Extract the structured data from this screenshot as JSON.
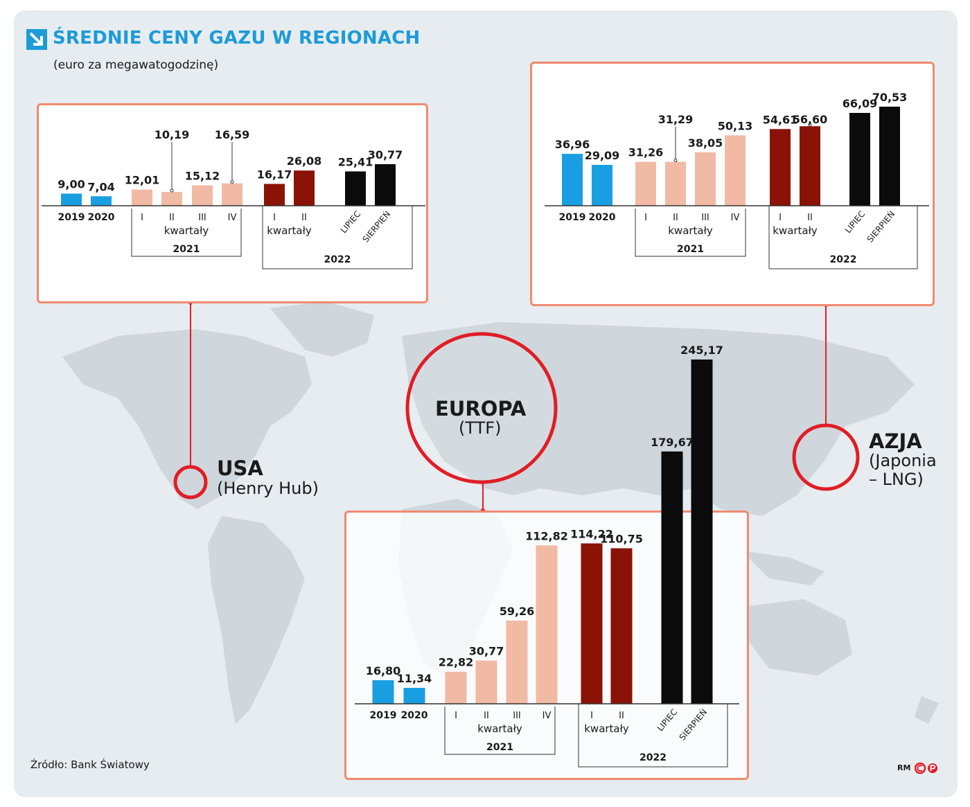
{
  "title": "ŚREDNIE CENY GAZU W REGIONACH",
  "subtitle": "(euro za megawatogodzinę)",
  "source": "Źródło: Bank Światowy",
  "credit": "RM",
  "colors": {
    "title_blue": "#1d9bd7",
    "bar_year": "#1a9ee2",
    "bar_2021": "#f1baa5",
    "bar_2022_q": "#8a1206",
    "bar_2022_m": "#0b0b0b",
    "marker_red": "#e11d25",
    "panel_border": "#f08a6e"
  },
  "labels": {
    "quarters": [
      "I",
      "II",
      "III",
      "IV"
    ],
    "kwartaly": "kwartały",
    "year_2021": "2021",
    "year_2022": "2022"
  },
  "regions": {
    "usa": {
      "name": "USA",
      "sub": "(Henry Hub)"
    },
    "europa": {
      "name": "EUROPA",
      "sub": "(TTF)"
    },
    "azja": {
      "name": "AZJA",
      "sub_line1": "(Japonia",
      "sub_line2": "– LNG)"
    }
  },
  "chart_data": [
    {
      "type": "bar",
      "region": "USA (Henry Hub)",
      "title": "ŚREDNIE CENY GAZU W REGIONACH",
      "ylabel": "euro za megawatogodzinę",
      "categories": [
        "2019",
        "2020",
        "I 2021",
        "II 2021",
        "III 2021",
        "IV 2021",
        "I 2022",
        "II 2022",
        "LIPIEC 2022",
        "SIERPIEŃ 2022"
      ],
      "values": [
        9.0,
        7.04,
        12.01,
        10.19,
        15.12,
        16.59,
        16.17,
        26.08,
        25.41,
        30.77
      ],
      "value_labels": [
        "9,00",
        "7,04",
        "12,01",
        "10,19",
        "15,12",
        "16,59",
        "16,17",
        "26,08",
        "25,41",
        "30,77"
      ],
      "tick_labels": [
        "2019",
        "2020",
        "I",
        "II",
        "III",
        "IV",
        "I",
        "II",
        "LIPIEC",
        "SIERPIEŃ"
      ],
      "groups": [
        "year",
        "year",
        "2021",
        "2021",
        "2021",
        "2021",
        "2022q",
        "2022q",
        "2022m",
        "2022m"
      ]
    },
    {
      "type": "bar",
      "region": "AZJA (Japonia – LNG)",
      "title": "ŚREDNIE CENY GAZU W REGIONACH",
      "ylabel": "euro za megawatogodzinę",
      "categories": [
        "2019",
        "2020",
        "I 2021",
        "II 2021",
        "III 2021",
        "IV 2021",
        "I 2022",
        "II 2022",
        "LIPIEC 2022",
        "SIERPIEŃ 2022"
      ],
      "values": [
        36.96,
        29.09,
        31.26,
        31.29,
        38.05,
        50.13,
        54.61,
        56.6,
        66.09,
        70.53
      ],
      "value_labels": [
        "36,96",
        "29,09",
        "31,26",
        "31,29",
        "38,05",
        "50,13",
        "54,61",
        "56,60",
        "66,09",
        "70,53"
      ],
      "tick_labels": [
        "2019",
        "2020",
        "I",
        "II",
        "III",
        "IV",
        "I",
        "II",
        "LIPIEC",
        "SIERPIEŃ"
      ],
      "groups": [
        "year",
        "year",
        "2021",
        "2021",
        "2021",
        "2021",
        "2022q",
        "2022q",
        "2022m",
        "2022m"
      ]
    },
    {
      "type": "bar",
      "region": "EUROPA (TTF)",
      "title": "ŚREDNIE CENY GAZU W REGIONACH",
      "ylabel": "euro za megawatogodzinę",
      "categories": [
        "2019",
        "2020",
        "I 2021",
        "II 2021",
        "III 2021",
        "IV 2021",
        "I 2022",
        "II 2022",
        "LIPIEC 2022",
        "SIERPIEŃ 2022"
      ],
      "values": [
        16.8,
        11.34,
        22.82,
        30.77,
        59.26,
        112.82,
        114.22,
        110.75,
        179.67,
        245.17
      ],
      "value_labels": [
        "16,80",
        "11,34",
        "22,82",
        "30,77",
        "59,26",
        "112,82",
        "114,22",
        "110,75",
        "179,67",
        "245,17"
      ],
      "tick_labels": [
        "2019",
        "2020",
        "I",
        "II",
        "III",
        "IV",
        "I",
        "II",
        "LIPIEC",
        "SIERPIEŃ"
      ],
      "groups": [
        "year",
        "year",
        "2021",
        "2021",
        "2021",
        "2021",
        "2022q",
        "2022q",
        "2022m",
        "2022m"
      ]
    }
  ]
}
